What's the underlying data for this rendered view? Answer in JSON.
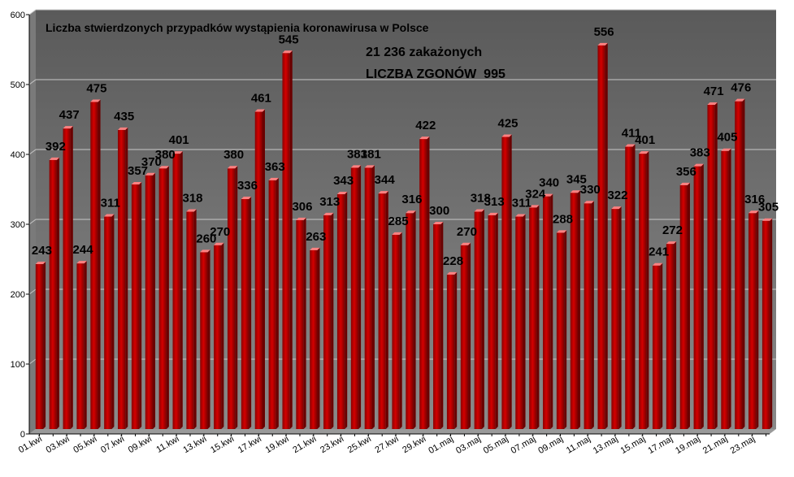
{
  "chart_data": {
    "type": "bar",
    "title": "Liczba stwierdzonych przypadków wystąpienia koronawirusa w Polsce",
    "annotations": [
      "21 236 zakażonych",
      "LICZBA ZGONÓW  995"
    ],
    "ylim": [
      0,
      600
    ],
    "yticks": [
      "0",
      "100",
      "200",
      "300",
      "400",
      "500",
      "600"
    ],
    "grid": true,
    "legend": "none",
    "colors": {
      "plot_bg": "#6e6e6e",
      "bar": "#c00000",
      "bar_top": "#ff8080",
      "grid": "#c8c8c8"
    },
    "categories": [
      "01.kwi",
      "02.kwi",
      "03.kwi",
      "04.kwi",
      "05.kwi",
      "06.kwi",
      "07.kwi",
      "08.kwi",
      "09.kwi",
      "10.kwi",
      "11.kwi",
      "12.kwi",
      "13.kwi",
      "14.kwi",
      "15.kwi",
      "16.kwi",
      "17.kwi",
      "18.kwi",
      "19.kwi",
      "20.kwi",
      "21.kwi",
      "22.kwi",
      "23.kwi",
      "24.kwi",
      "25.kwi",
      "26.kwi",
      "27.kwi",
      "28.kwi",
      "29.kwi",
      "30.kwi",
      "01.maj",
      "02.maj",
      "03.maj",
      "04.maj",
      "05.maj",
      "06.maj",
      "07.maj",
      "08.maj",
      "09.maj",
      "10.maj",
      "11.maj",
      "12.maj",
      "13.maj",
      "14.maj",
      "15.maj",
      "16.maj",
      "17.maj",
      "18.maj",
      "19.maj",
      "20.maj",
      "21.maj",
      "22.maj",
      "23.maj",
      "24.maj"
    ],
    "shown_x_ticks": [
      "01.kwi",
      "03.kwi",
      "05.kwi",
      "07.kwi",
      "09.kwi",
      "11.kwi",
      "13.kwi",
      "15.kwi",
      "17.kwi",
      "19.kwi",
      "21.kwi",
      "23.kwi",
      "25.kwi",
      "27.kwi",
      "29.kwi",
      "01.maj",
      "03.maj",
      "05.maj",
      "07.maj",
      "09.maj",
      "11.maj",
      "13.maj",
      "15.maj",
      "17.maj",
      "19.maj",
      "21.maj",
      "23.maj"
    ],
    "values": [
      243,
      392,
      437,
      244,
      475,
      311,
      435,
      357,
      370,
      380,
      401,
      318,
      260,
      270,
      380,
      336,
      461,
      363,
      545,
      306,
      263,
      313,
      343,
      381,
      381,
      344,
      285,
      316,
      422,
      300,
      228,
      270,
      318,
      313,
      425,
      311,
      324,
      340,
      288,
      345,
      330,
      556,
      322,
      411,
      401,
      241,
      272,
      356,
      383,
      471,
      405,
      476,
      316,
      305
    ]
  }
}
